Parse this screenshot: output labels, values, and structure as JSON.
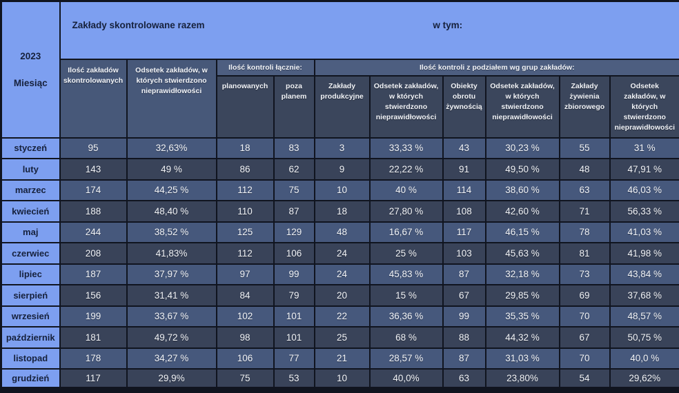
{
  "corner": {
    "year": "2023",
    "month_label": "Miesiąc"
  },
  "header": {
    "group_total": "Zakłady skontrolowane razem",
    "group_breakdown": "w tym:",
    "col_inspected_count": "Ilość zakładów skontrolowanych",
    "col_irregularities_pct": "Odsetek zakładów, w których stwierdzono nieprawidłowości",
    "band_total_inspections": "Ilość kontroli łącznie:",
    "band_by_group": "Ilość kontroli z podziałem wg grup zakładów:",
    "col_planned": "planowanych",
    "col_unplanned": "poza planem",
    "col_production": "Zakłady produkcyjne",
    "col_production_pct": "Odsetek zakładów, w których stwierdzono nieprawidłowości",
    "col_food_trade": "Obiekty obrotu żywnością",
    "col_food_trade_pct": "Odsetek zakładów, w których stwierdzono nieprawidłowości",
    "col_catering": "Zakłady żywienia zbiorowego",
    "col_catering_pct": "Odsetek zakładów, w których stwierdzono nieprawidłowości"
  },
  "rows": [
    {
      "month": "styczeń",
      "values": [
        "95",
        "32,63%",
        "18",
        "83",
        "3",
        "33,33 %",
        "43",
        "30,23 %",
        "55",
        "31 %"
      ]
    },
    {
      "month": "luty",
      "values": [
        "143",
        "49 %",
        "86",
        "62",
        "9",
        "22,22 %",
        "91",
        "49,50 %",
        "48",
        "47,91 %"
      ]
    },
    {
      "month": "marzec",
      "values": [
        "174",
        "44,25 %",
        "112",
        "75",
        "10",
        "40 %",
        "114",
        "38,60 %",
        "63",
        "46,03 %"
      ]
    },
    {
      "month": "kwiecień",
      "values": [
        "188",
        "48,40 %",
        "110",
        "87",
        "18",
        "27,80 %",
        "108",
        "42,60 %",
        "71",
        "56,33 %"
      ]
    },
    {
      "month": "maj",
      "values": [
        "244",
        "38,52 %",
        "125",
        "129",
        "48",
        "16,67 %",
        "117",
        "46,15 %",
        "78",
        "41,03 %"
      ]
    },
    {
      "month": "czerwiec",
      "values": [
        "208",
        "41,83%",
        "112",
        "106",
        "24",
        "25 %",
        "103",
        "45,63 %",
        "81",
        "41,98 %"
      ]
    },
    {
      "month": "lipiec",
      "values": [
        "187",
        "37,97 %",
        "97",
        "99",
        "24",
        "45,83 %",
        "87",
        "32,18 %",
        "73",
        "43,84 %"
      ]
    },
    {
      "month": "sierpień",
      "values": [
        "156",
        "31,41 %",
        "84",
        "79",
        "20",
        "15 %",
        "67",
        "29,85 %",
        "69",
        "37,68 %"
      ]
    },
    {
      "month": "wrzesień",
      "values": [
        "199",
        "33,67 %",
        "102",
        "101",
        "22",
        "36,36 %",
        "99",
        "35,35 %",
        "70",
        "48,57 %"
      ]
    },
    {
      "month": "październik",
      "values": [
        "181",
        "49,72 %",
        "98",
        "101",
        "25",
        "68 %",
        "88",
        "44,32 %",
        "67",
        "50,75 %"
      ]
    },
    {
      "month": "listopad",
      "values": [
        "178",
        "34,27 %",
        "106",
        "77",
        "21",
        "28,57 %",
        "87",
        "31,03 %",
        "70",
        "40,0 %"
      ]
    },
    {
      "month": "grudzień",
      "values": [
        "117",
        "29,9%",
        "75",
        "53",
        "10",
        "40,0%",
        "63",
        "23,80%",
        "54",
        "29,62%"
      ]
    }
  ],
  "colors": {
    "light_blue": "#7d9ff0",
    "band_slate": "#4d5e80",
    "head_light": "#475879",
    "head_dark": "#3b465c",
    "row_light": "#46587c",
    "row_dark": "#394359",
    "grid": "#10141f",
    "text_dark": "#16213c",
    "text_light": "#f2f4f8"
  },
  "chart_data": {
    "type": "table",
    "title": "2023 — Zakłady skontrolowane razem / kontrole wg grup zakładów",
    "categories": [
      "styczeń",
      "luty",
      "marzec",
      "kwiecień",
      "maj",
      "czerwiec",
      "lipiec",
      "sierpień",
      "wrzesień",
      "październik",
      "listopad",
      "grudzień"
    ],
    "series": [
      {
        "name": "Ilość zakładów skontrolowanych",
        "values": [
          95,
          143,
          174,
          188,
          244,
          208,
          187,
          156,
          199,
          181,
          178,
          117
        ]
      },
      {
        "name": "Odsetek zakładów z nieprawidłowościami (%)",
        "values": [
          32.63,
          49,
          44.25,
          48.4,
          38.52,
          41.83,
          37.97,
          31.41,
          33.67,
          49.72,
          34.27,
          29.9
        ]
      },
      {
        "name": "Kontrole planowane",
        "values": [
          18,
          86,
          112,
          110,
          125,
          112,
          97,
          84,
          102,
          98,
          106,
          75
        ]
      },
      {
        "name": "Kontrole poza planem",
        "values": [
          83,
          62,
          75,
          87,
          129,
          106,
          99,
          79,
          101,
          101,
          77,
          53
        ]
      },
      {
        "name": "Zakłady produkcyjne — kontrole",
        "values": [
          3,
          9,
          10,
          18,
          48,
          24,
          24,
          20,
          22,
          25,
          21,
          10
        ]
      },
      {
        "name": "Zakłady produkcyjne — odsetek nieprawidłowości (%)",
        "values": [
          33.33,
          22.22,
          40,
          27.8,
          16.67,
          25,
          45.83,
          15,
          36.36,
          68,
          28.57,
          40.0
        ]
      },
      {
        "name": "Obiekty obrotu żywnością — kontrole",
        "values": [
          43,
          91,
          114,
          108,
          117,
          103,
          87,
          67,
          99,
          88,
          87,
          63
        ]
      },
      {
        "name": "Obiekty obrotu żywnością — odsetek nieprawidłowości (%)",
        "values": [
          30.23,
          49.5,
          38.6,
          42.6,
          46.15,
          45.63,
          32.18,
          29.85,
          35.35,
          44.32,
          31.03,
          23.8
        ]
      },
      {
        "name": "Zakłady żywienia zbiorowego — kontrole",
        "values": [
          55,
          48,
          63,
          71,
          78,
          81,
          73,
          69,
          70,
          67,
          70,
          54
        ]
      },
      {
        "name": "Zakłady żywienia zbiorowego — odsetek nieprawidłowości (%)",
        "values": [
          31,
          47.91,
          46.03,
          56.33,
          41.03,
          41.98,
          43.84,
          37.68,
          48.57,
          50.75,
          40.0,
          29.62
        ]
      }
    ]
  }
}
